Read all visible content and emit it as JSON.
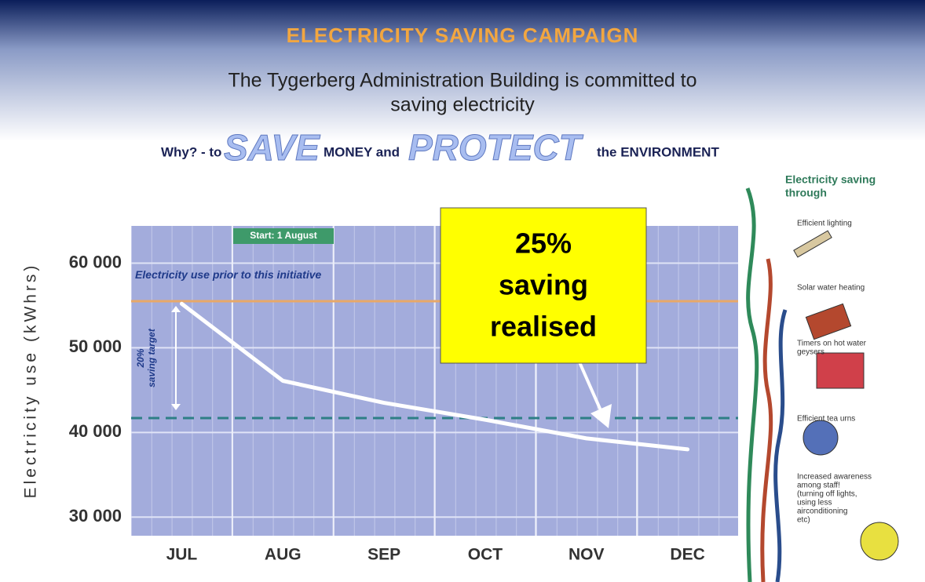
{
  "header": {
    "title": "ELECTRICITY SAVING CAMPAIGN",
    "subtitle_lines": [
      "The Tygerberg Administration Building is committed to",
      "saving electricity"
    ],
    "tagline": [
      "Why? - to",
      "SAVE",
      "MONEY and",
      "PROTECT",
      "the ENVIRONMENT"
    ]
  },
  "chart_data": {
    "type": "line",
    "y_label": "Electricity use (kWhrs)",
    "categories": [
      "JUL",
      "AUG",
      "SEP",
      "OCT",
      "NOV",
      "DEC"
    ],
    "values": [
      55200,
      46100,
      43500,
      41500,
      39300,
      38000
    ],
    "color": "#ffffff",
    "ylim": [
      27800,
      64400
    ],
    "yticks": [
      {
        "value": 30000,
        "label": "30 000"
      },
      {
        "value": 40000,
        "label": "40 000"
      },
      {
        "value": 50000,
        "label": "50 000"
      },
      {
        "value": 60000,
        "label": "60 000"
      }
    ],
    "grid": true,
    "reference_lines": [
      {
        "value": 55500,
        "label": "Electricity use prior to this initiative",
        "color": "#e8a868"
      },
      {
        "value": 41700,
        "color": "#2e7f86",
        "dashed": true
      }
    ],
    "annotations": {
      "start": "Start: 1 August",
      "target_lines": [
        "20%",
        "saving target"
      ],
      "callout_lines": [
        "25%",
        "saving",
        "realised"
      ]
    }
  },
  "sidebar": {
    "heading_lines": [
      "Electricity saving",
      "through"
    ],
    "items": [
      [
        "Efficient lighting"
      ],
      [
        "Solar water heating"
      ],
      [
        "Timers on hot water",
        "geysers"
      ],
      [
        "Efficient tea urns"
      ],
      [
        "Increased awareness",
        "among staff!",
        "(turning off lights,",
        "using less",
        "airconditioning",
        "etc)"
      ]
    ]
  }
}
